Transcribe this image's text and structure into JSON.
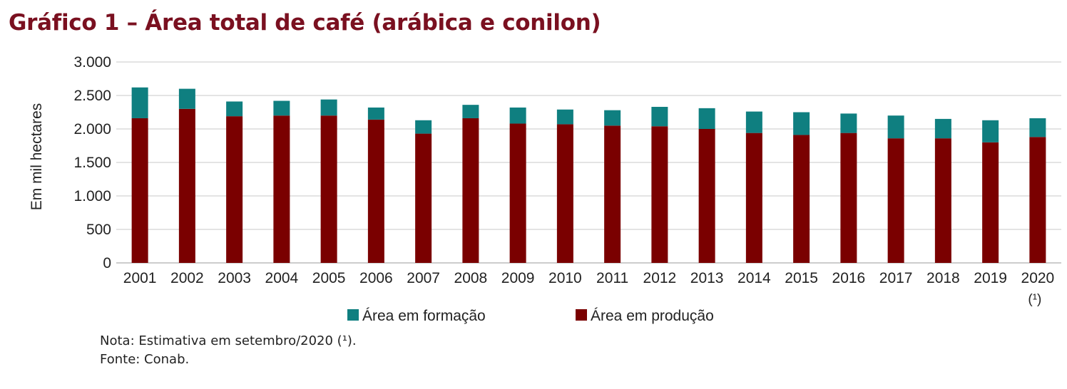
{
  "title": "Gráfico 1 – Área total de café (arábica e conilon)",
  "colors": {
    "title": "#7a1020",
    "formacao": "#0f7f80",
    "producao": "#7a0000",
    "grid": "#c8c8c8",
    "text": "#222222"
  },
  "chart_data": {
    "type": "bar",
    "stacked": true,
    "title": "Gráfico 1 – Área total de café (arábica e conilon)",
    "ylabel": "Em mil hectares",
    "xlabel": "",
    "ylim": [
      0,
      3000
    ],
    "yticks": [
      0,
      500,
      1000,
      1500,
      2000,
      2500,
      3000
    ],
    "ytick_labels": [
      "0",
      "500",
      "1.000",
      "1.500",
      "2.000",
      "2.500",
      "3.000"
    ],
    "grid": true,
    "legend_position": "bottom",
    "categories": [
      "2001",
      "2002",
      "2003",
      "2004",
      "2005",
      "2006",
      "2007",
      "2008",
      "2009",
      "2010",
      "2011",
      "2012",
      "2013",
      "2014",
      "2015",
      "2016",
      "2017",
      "2018",
      "2019",
      "2020"
    ],
    "category_footnotes": {
      "2020": "(¹)"
    },
    "series": [
      {
        "name": "Área em produção",
        "color": "#7a0000",
        "values": [
          2160,
          2300,
          2190,
          2200,
          2200,
          2140,
          1930,
          2160,
          2080,
          2070,
          2050,
          2040,
          2000,
          1940,
          1910,
          1940,
          1860,
          1860,
          1800,
          1880
        ]
      },
      {
        "name": "Área em formação",
        "color": "#0f7f80",
        "values": [
          460,
          300,
          220,
          220,
          240,
          180,
          200,
          200,
          240,
          220,
          230,
          290,
          310,
          320,
          340,
          290,
          340,
          290,
          330,
          280
        ]
      }
    ],
    "legend": [
      "Área em formação",
      "Área em produção"
    ]
  },
  "notes": {
    "nota": "Nota: Estimativa em setembro/2020 (¹).",
    "fonte": "Fonte: Conab."
  }
}
